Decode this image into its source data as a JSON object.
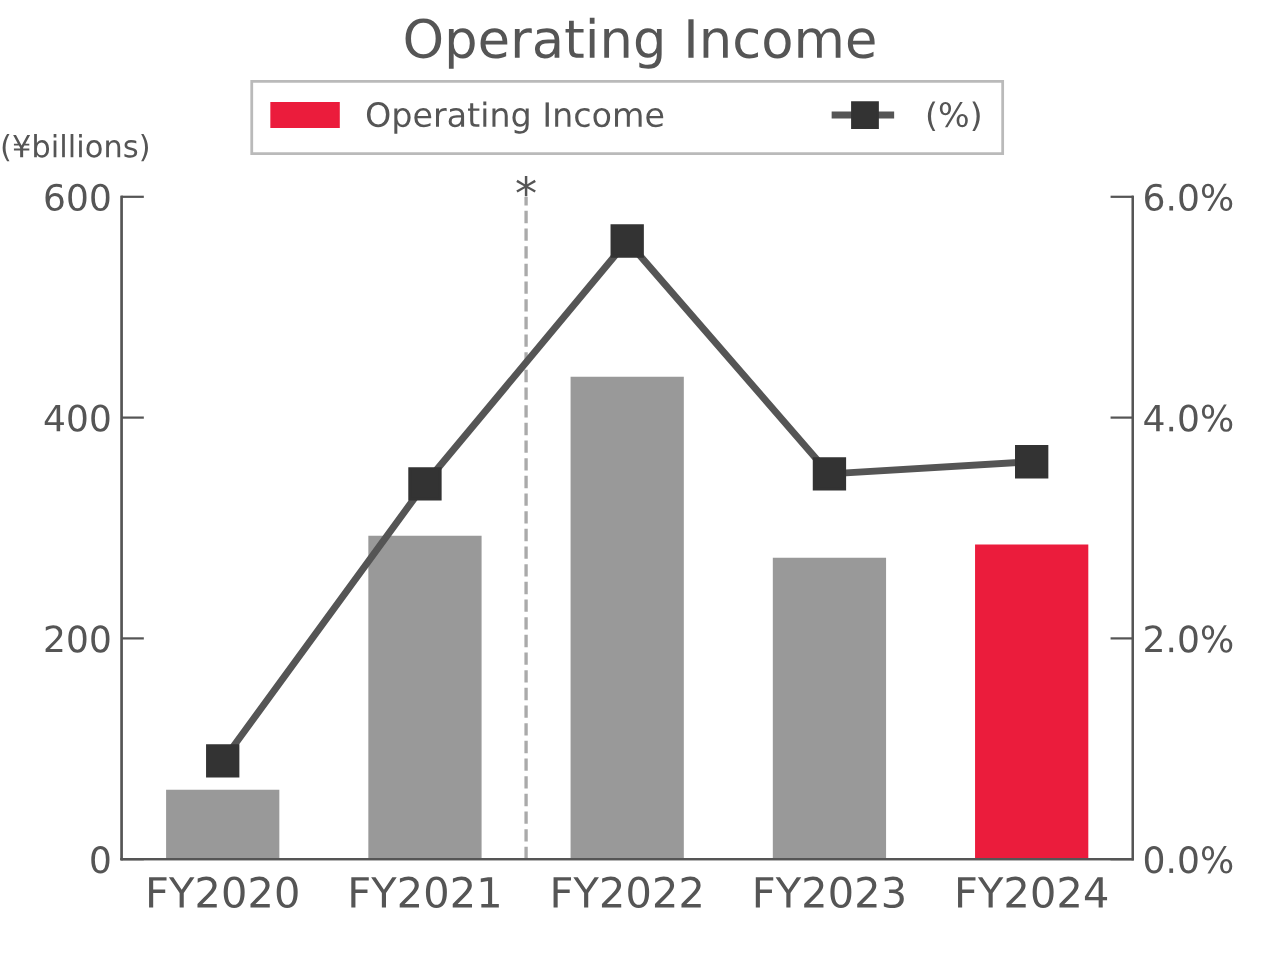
{
  "chart_data": {
    "type": "bar",
    "title": "Operating Income",
    "ylabel": "(¥billions)",
    "categories": [
      "FY2020",
      "FY2021",
      "FY2022",
      "FY2023",
      "FY2024"
    ],
    "series": [
      {
        "name": "Operating Income",
        "color": "#eb1c3c",
        "colors": [
          "#999999",
          "#999999",
          "#999999",
          "#999999",
          "#eb1c3c"
        ],
        "values": [
          63,
          293,
          437,
          273,
          285
        ]
      },
      {
        "name": "(%)",
        "type": "line",
        "axis": "y2",
        "color": "#555555",
        "marker": "square",
        "line_style": "solid",
        "values": [
          0.89,
          3.4,
          5.6,
          3.49,
          3.6
        ]
      }
    ],
    "ylim": [
      0,
      600
    ],
    "yticks": [
      0,
      200,
      400,
      600
    ],
    "y2lim": [
      0,
      6
    ],
    "y2ticks": [
      {
        "value": 0,
        "label": "0.0%"
      },
      {
        "value": 2,
        "label": "2.0%"
      },
      {
        "value": 4,
        "label": "4.0%"
      },
      {
        "value": 6,
        "label": "6.0%"
      }
    ],
    "annotations": [
      "*"
    ],
    "grid": false,
    "legend": "top"
  }
}
